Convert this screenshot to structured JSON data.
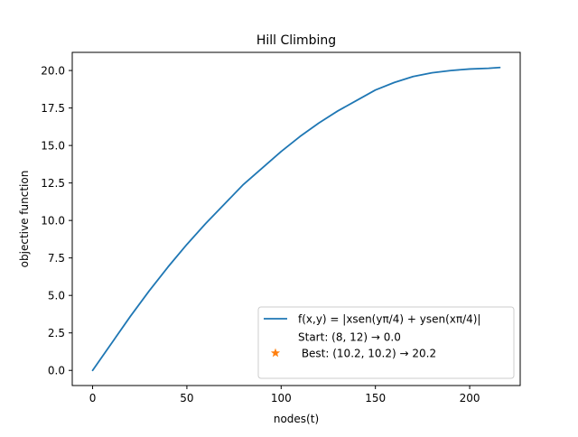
{
  "chart_data": {
    "type": "line",
    "title": "Hill Climbing",
    "xlabel": "nodes(t)",
    "ylabel": "objective function",
    "xlim": [
      -10.8,
      226.8
    ],
    "ylim": [
      -1.01,
      21.21
    ],
    "xticks": [
      0,
      50,
      100,
      150,
      200
    ],
    "xtick_labels": [
      "0",
      "50",
      "100",
      "150",
      "200"
    ],
    "yticks": [
      0.0,
      2.5,
      5.0,
      7.5,
      10.0,
      12.5,
      15.0,
      17.5,
      20.0
    ],
    "ytick_labels": [
      "0.0",
      "2.5",
      "5.0",
      "7.5",
      "10.0",
      "12.5",
      "15.0",
      "17.5",
      "20.0"
    ],
    "grid": false,
    "legend_position": "lower-right",
    "series": [
      {
        "name": "f(x,y) = |xsen(yπ/4) + ysen(xπ/4)|",
        "color": "#1f77b4",
        "marker": "line",
        "x": [
          0,
          10,
          20,
          30,
          40,
          50,
          60,
          70,
          80,
          90,
          100,
          110,
          120,
          130,
          140,
          150,
          160,
          170,
          180,
          190,
          200,
          210,
          216
        ],
        "y": [
          0.0,
          1.8,
          3.6,
          5.3,
          6.9,
          8.4,
          9.8,
          11.1,
          12.4,
          13.5,
          14.6,
          15.6,
          16.5,
          17.3,
          18.0,
          18.7,
          19.2,
          19.6,
          19.85,
          20.0,
          20.1,
          20.15,
          20.2
        ]
      },
      {
        "name": "Start: (8, 12) → 0.0",
        "color": "#1f77b4",
        "marker": "none",
        "x": [],
        "y": []
      },
      {
        "name": " Best: (10.2, 10.2) → 20.2",
        "color": "#ff7f0e",
        "marker": "star",
        "x": [],
        "y": []
      }
    ]
  }
}
